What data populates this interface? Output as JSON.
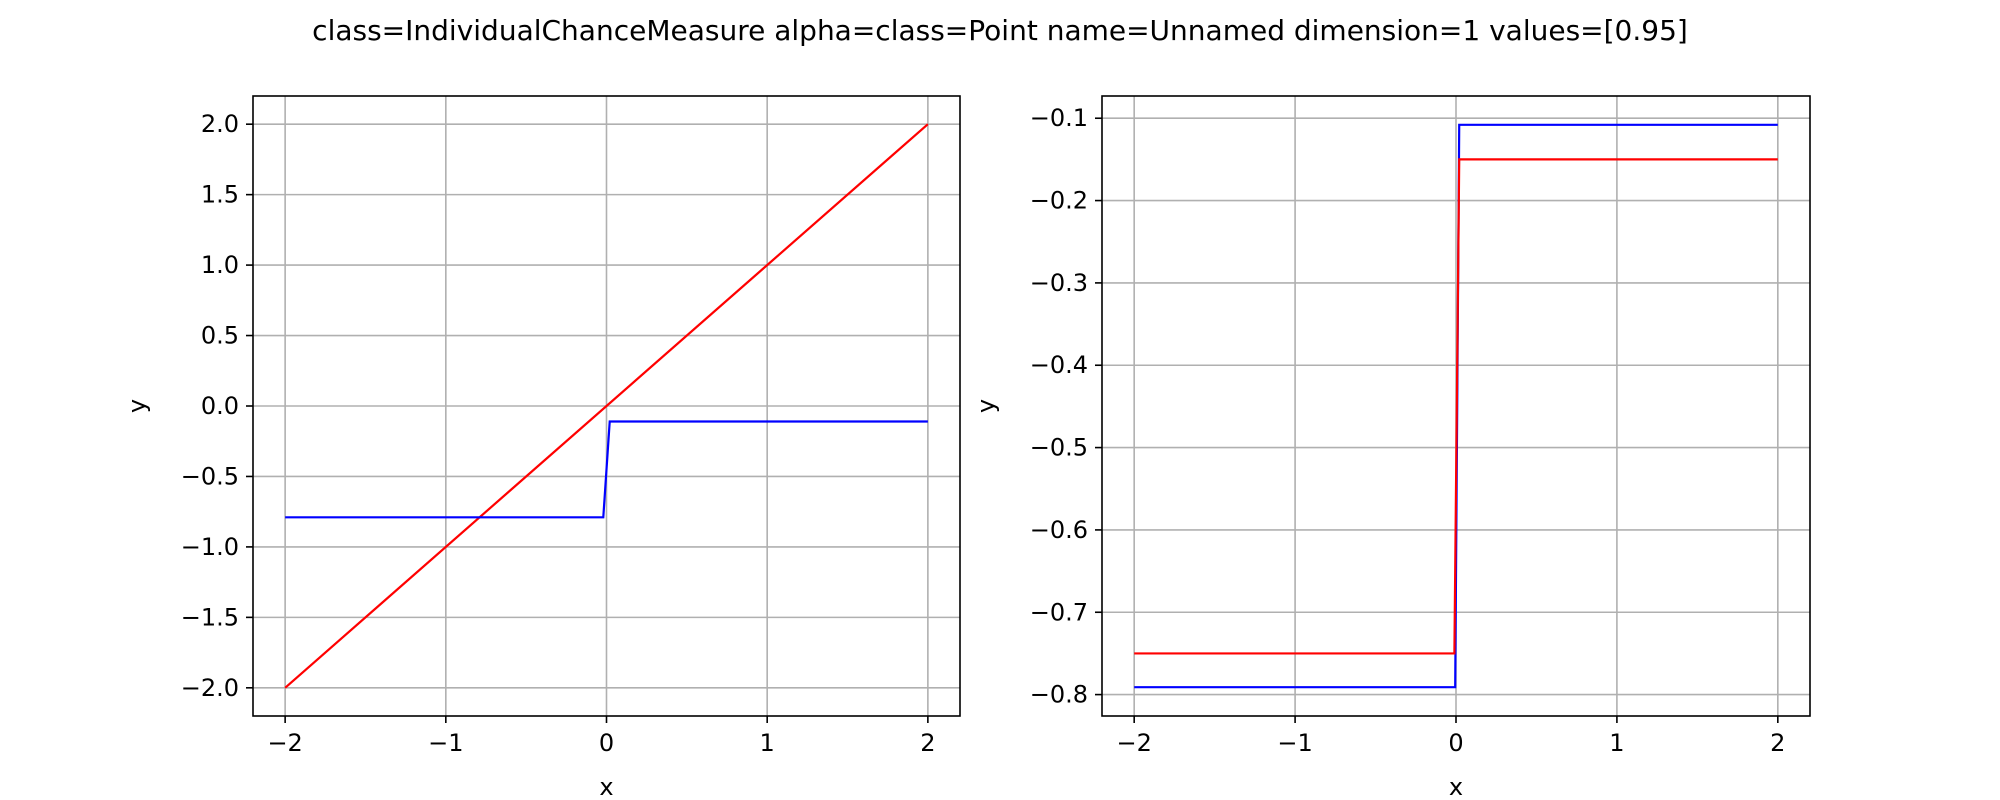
{
  "figure": {
    "suptitle": "class=IndividualChanceMeasure alpha=class=Point name=Unnamed dimension=1 values=[0.95]"
  },
  "chart_data": [
    {
      "type": "line",
      "xlabel": "x",
      "ylabel": "y",
      "xlim": [
        -2.2,
        2.2
      ],
      "ylim": [
        -2.2,
        2.2
      ],
      "xticks": [
        -2,
        -1,
        0,
        1,
        2
      ],
      "xtick_labels": [
        "−2",
        "−1",
        "0",
        "1",
        "2"
      ],
      "yticks": [
        -2.0,
        -1.5,
        -1.0,
        -0.5,
        0.0,
        0.5,
        1.0,
        1.5,
        2.0
      ],
      "ytick_labels": [
        "−2.0",
        "−1.5",
        "−1.0",
        "−0.5",
        "0.0",
        "0.5",
        "1.0",
        "1.5",
        "2.0"
      ],
      "grid": true,
      "series": [
        {
          "color": "#ff0000",
          "x": [
            -2,
            2
          ],
          "y": [
            -2,
            2
          ]
        },
        {
          "color": "#0000ff",
          "x": [
            -2,
            -0.02,
            0.02,
            2
          ],
          "y": [
            -0.79,
            -0.79,
            -0.11,
            -0.11
          ]
        }
      ]
    },
    {
      "type": "line",
      "xlabel": "x",
      "ylabel": "y",
      "xlim": [
        -2.2,
        2.2
      ],
      "ylim": [
        -0.826,
        -0.073
      ],
      "xticks": [
        -2,
        -1,
        0,
        1,
        2
      ],
      "xtick_labels": [
        "−2",
        "−1",
        "0",
        "1",
        "2"
      ],
      "yticks": [
        -0.8,
        -0.7,
        -0.6,
        -0.5,
        -0.4,
        -0.3,
        -0.2,
        -0.1
      ],
      "ytick_labels": [
        "−0.8",
        "−0.7",
        "−0.6",
        "−0.5",
        "−0.4",
        "−0.3",
        "−0.2",
        "−0.1"
      ],
      "grid": true,
      "series": [
        {
          "color": "#0000ff",
          "x": [
            -2,
            -0.005,
            0.02,
            2
          ],
          "y": [
            -0.791,
            -0.791,
            -0.108,
            -0.108
          ]
        },
        {
          "color": "#ff0000",
          "x": [
            -2,
            -0.01,
            0.02,
            2
          ],
          "y": [
            -0.75,
            -0.75,
            -0.15,
            -0.15
          ]
        }
      ]
    }
  ]
}
